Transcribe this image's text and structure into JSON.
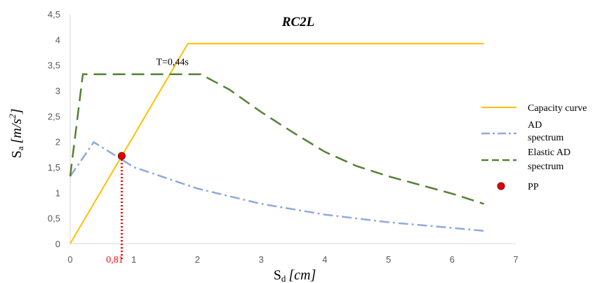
{
  "chart_data": {
    "type": "line",
    "title": "RC2L",
    "xlabel": {
      "main": "S",
      "sub": "d",
      "unit": "[cm]"
    },
    "ylabel": {
      "main": "S",
      "sub": "a",
      "unit": "[m/s",
      "sup": "2",
      "unit_end": "]"
    },
    "xlim": [
      0,
      7
    ],
    "ylim": [
      0,
      4.5
    ],
    "xticks": [
      "0",
      "1",
      "2",
      "3",
      "4",
      "5",
      "6",
      "7"
    ],
    "yticks": [
      "0",
      "0,5",
      "1",
      "1,5",
      "2",
      "2,5",
      "3",
      "3,5",
      "4",
      "4,5"
    ],
    "grid": "none",
    "legend_position": "right",
    "series": [
      {
        "name": "Capacity curve",
        "color": "#FFC000",
        "style": "solid",
        "points": [
          [
            0,
            0
          ],
          [
            1.85,
            3.92
          ],
          [
            6.5,
            3.92
          ]
        ]
      },
      {
        "name": "AD spectrum",
        "legend_lines": [
          "AD",
          "spectrum"
        ],
        "color": "#8FAADC",
        "style": "dashdot",
        "points": [
          [
            0,
            1.32
          ],
          [
            0.37,
            1.99
          ],
          [
            1.0,
            1.5
          ],
          [
            2.0,
            1.08
          ],
          [
            3.0,
            0.78
          ],
          [
            4.0,
            0.57
          ],
          [
            5.0,
            0.42
          ],
          [
            6.0,
            0.31
          ],
          [
            6.5,
            0.25
          ]
        ]
      },
      {
        "name": "Elastic AD spectrum",
        "legend_lines": [
          "Elastic AD",
          "spectrum"
        ],
        "color": "#548235",
        "style": "dashed",
        "points": [
          [
            0,
            1.32
          ],
          [
            0.2,
            3.32
          ],
          [
            2.05,
            3.32
          ],
          [
            2.5,
            3.02
          ],
          [
            3.0,
            2.58
          ],
          [
            3.5,
            2.18
          ],
          [
            4.0,
            1.8
          ],
          [
            4.5,
            1.52
          ],
          [
            5.0,
            1.32
          ],
          [
            5.5,
            1.15
          ],
          [
            6.0,
            0.98
          ],
          [
            6.5,
            0.78
          ]
        ]
      },
      {
        "name": "PP",
        "color": "#E00000",
        "style": "marker",
        "points": [
          [
            0.81,
            1.72
          ]
        ]
      }
    ],
    "annotations": {
      "period_label": "T=0,44s",
      "period_at": [
        1.35,
        3.5
      ],
      "pp_x_label": "0,81",
      "pp_x": 0.81,
      "pp_y": 1.72,
      "pp_guide_color": "#FF0000"
    }
  }
}
